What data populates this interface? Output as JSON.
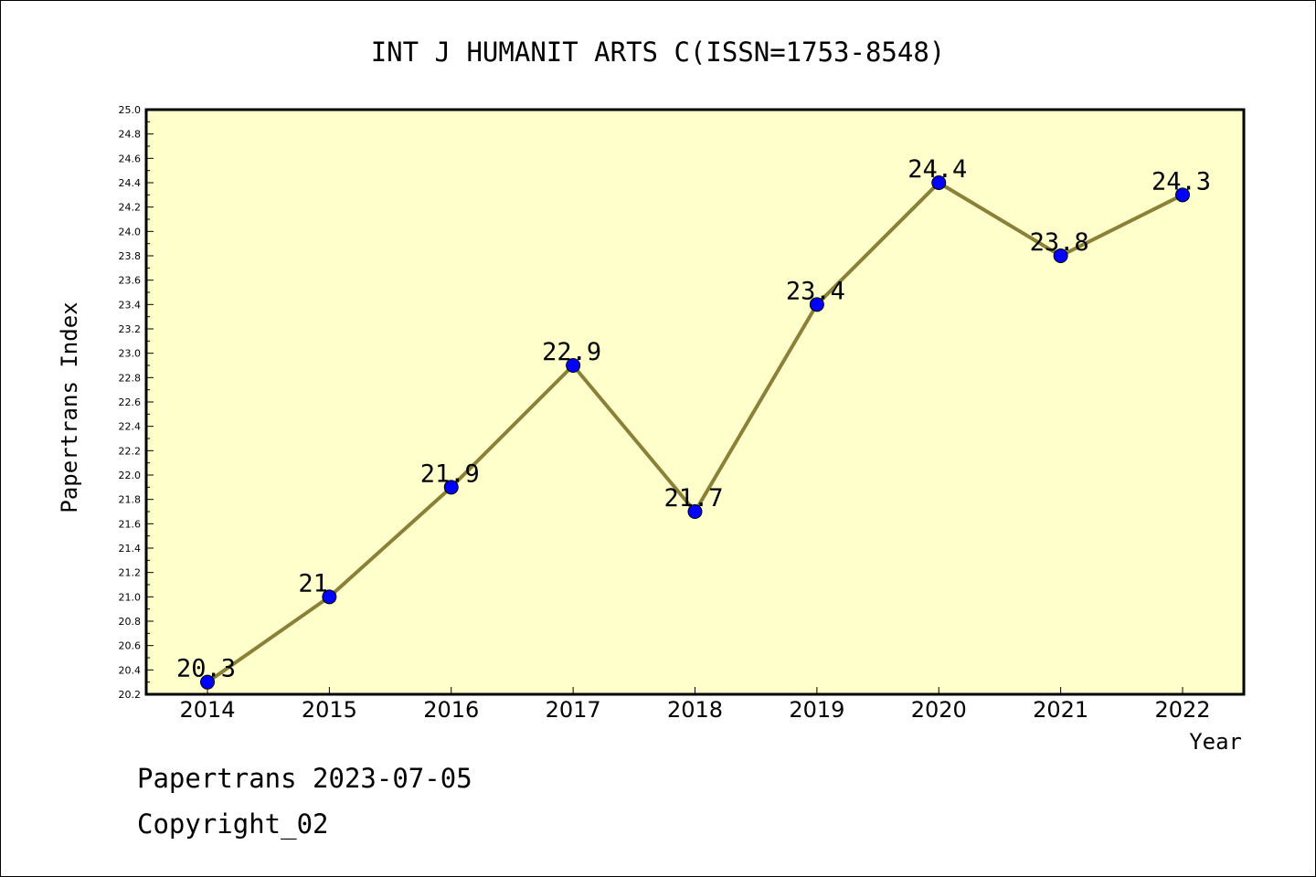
{
  "chart_data": {
    "type": "line",
    "title": "INT J HUMANIT ARTS C(ISSN=1753-8548)",
    "xlabel": "Year",
    "ylabel": "Papertrans Index",
    "categories": [
      "2014",
      "2015",
      "2016",
      "2017",
      "2018",
      "2019",
      "2020",
      "2021",
      "2022"
    ],
    "series": [
      {
        "values": [
          20.3,
          21.0,
          21.9,
          22.9,
          21.7,
          23.4,
          24.4,
          23.8,
          24.3
        ],
        "labels": [
          "20.3",
          "21",
          "21.9",
          "22.9",
          "21.7",
          "23.4",
          "24.4",
          "23.8",
          "24.3"
        ]
      }
    ],
    "ylim": [
      20.2,
      25.0
    ],
    "ytick_step": 0.2,
    "grid": false,
    "legend": "none",
    "colors": {
      "plot_background": "#ffffcc",
      "line": "#8b8038",
      "marker": "#0000ff"
    }
  },
  "footer": {
    "line1": "Papertrans 2023-07-05",
    "line2": "Copyright_02"
  }
}
